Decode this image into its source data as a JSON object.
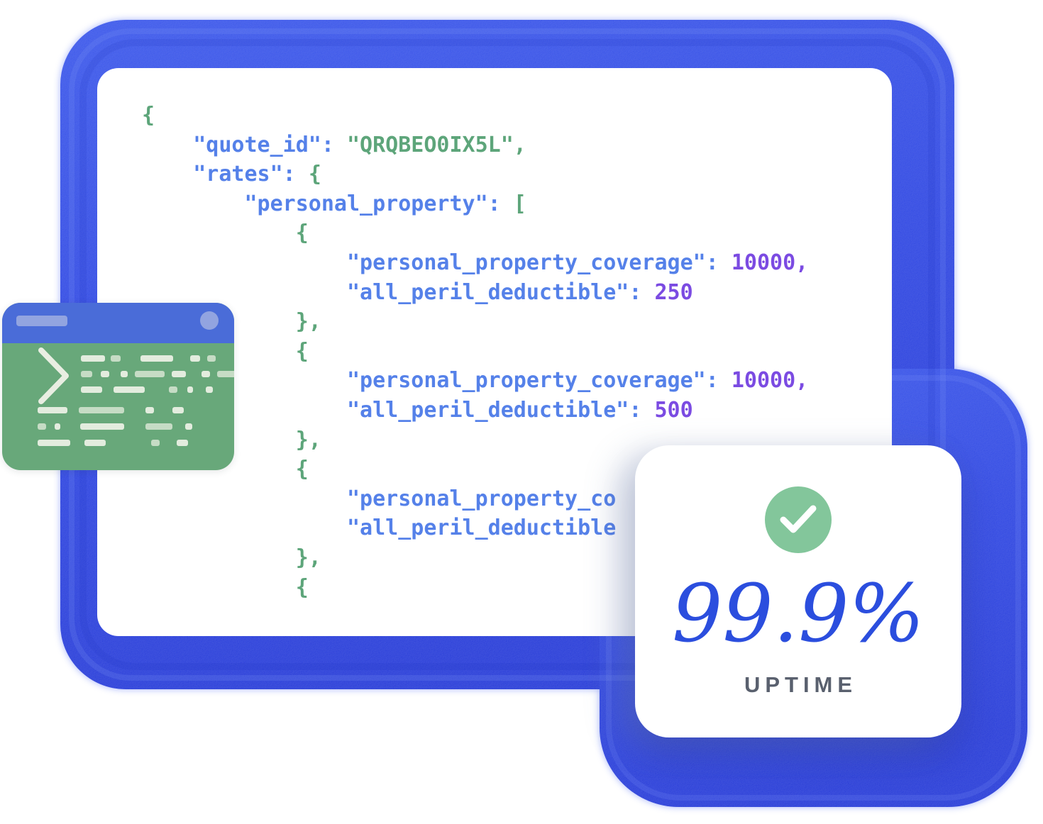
{
  "colors": {
    "frame_blue": "#2c46e8",
    "frame_blue_light": "#3a58f2",
    "frame_blue_dark": "#2237dc",
    "code_key": "#5581e9",
    "code_green": "#5da57a",
    "code_number": "#7b4be2",
    "uptime_value_blue": "#2b4ede",
    "uptime_label_gray": "#59606e",
    "check_green": "#83c69b",
    "terminal_header_blue": "#4a6cd8",
    "terminal_accent_light_blue": "#92a4e0",
    "terminal_body_green": "#68a87a",
    "terminal_dash_white": "#eef2e6"
  },
  "icons": {
    "check_icon": "check-circle",
    "prompt_icon": "chevron-right-prompt",
    "terminal_icon": "terminal-window-illustration"
  },
  "code_panel": {
    "lines": [
      [
        [
          "g",
          "{"
        ]
      ],
      [
        [
          "k",
          "    \"quote_id\": "
        ],
        [
          "s",
          "\"QRQBEO0IX5L\""
        ],
        [
          "g",
          ","
        ]
      ],
      [
        [
          "k",
          "    \"rates\": "
        ],
        [
          "g",
          "{"
        ]
      ],
      [
        [
          "k",
          "        \"personal_property\": "
        ],
        [
          "g",
          "["
        ]
      ],
      [
        [
          "g",
          "            {"
        ]
      ],
      [
        [
          "k",
          "                \"personal_property_coverage\": "
        ],
        [
          "n",
          "10000,"
        ]
      ],
      [
        [
          "k",
          "                \"all_peril_deductible\": "
        ],
        [
          "n",
          "250"
        ]
      ],
      [
        [
          "g",
          "            },"
        ]
      ],
      [
        [
          "g",
          "            {"
        ]
      ],
      [
        [
          "k",
          "                \"personal_property_coverage\": "
        ],
        [
          "n",
          "10000,"
        ]
      ],
      [
        [
          "k",
          "                \"all_peril_deductible\": "
        ],
        [
          "n",
          "500"
        ]
      ],
      [
        [
          "g",
          "            },"
        ]
      ],
      [
        [
          "g",
          "            {"
        ]
      ],
      [
        [
          "k",
          "                \"personal_property_co"
        ]
      ],
      [
        [
          "k",
          "                \"all_peril_deductible"
        ]
      ],
      [
        [
          "g",
          "            },"
        ]
      ],
      [
        [
          "g",
          "            {"
        ]
      ]
    ]
  },
  "uptime_card": {
    "value": "99.9%",
    "label": "UPTIME"
  }
}
